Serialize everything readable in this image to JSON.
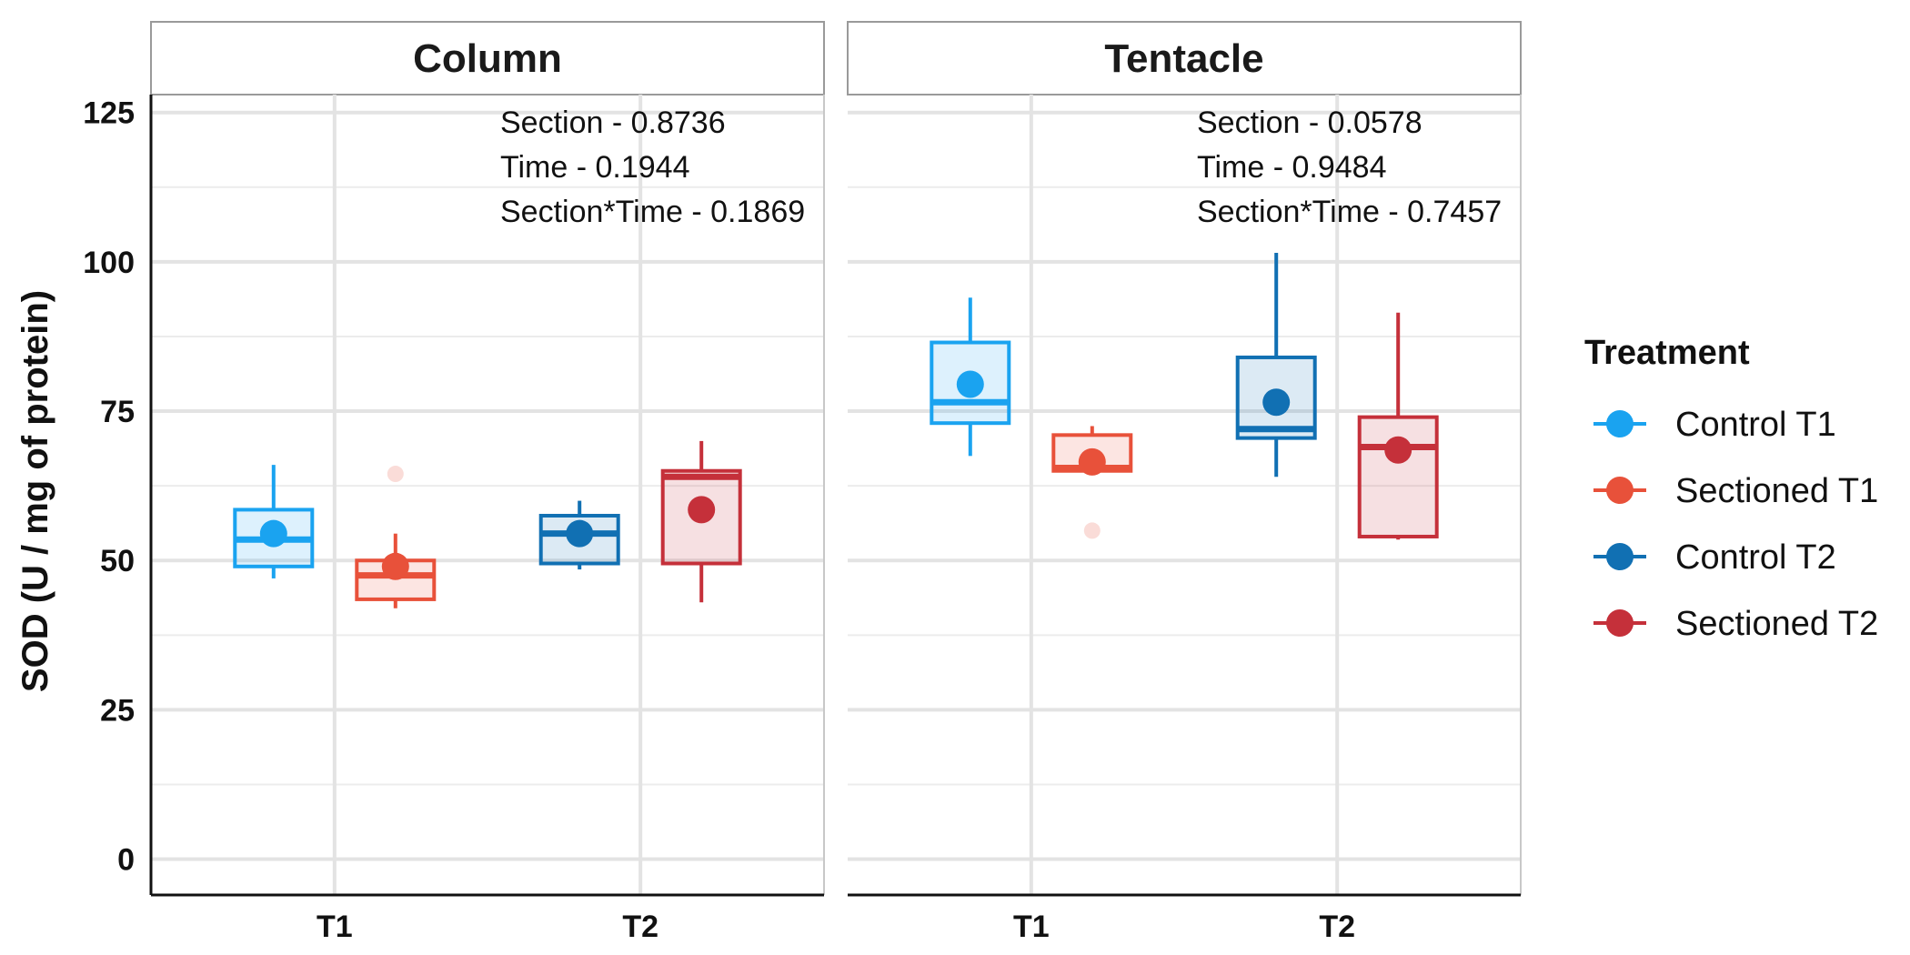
{
  "chart_data": {
    "type": "box",
    "ylabel": "SOD (U / mg  of protein)",
    "xlabel": "",
    "ylim": [
      -6,
      128
    ],
    "yticks": [
      0,
      25,
      50,
      75,
      100,
      125
    ],
    "categories": [
      "T1",
      "T2"
    ],
    "grid": true,
    "legend": {
      "title": "Treatment",
      "placement": "right",
      "entries": [
        {
          "label": "Control T1",
          "color": "#1aa3f0"
        },
        {
          "label": "Sectioned T1",
          "color": "#e8513a"
        },
        {
          "label": "Control T2",
          "color": "#1170b3"
        },
        {
          "label": "Sectioned T2",
          "color": "#c5303a"
        }
      ]
    },
    "panels": [
      {
        "title": "Column",
        "annotations": [
          "Section - 0.8736",
          "Time - 0.1944",
          "Section*Time - 0.1869"
        ],
        "boxes": [
          {
            "series": "Control T1",
            "category": "T1",
            "offset": -1,
            "color": "#1aa3f0",
            "whisker_low": 47,
            "q1": 49,
            "median": 53.5,
            "q3": 58.5,
            "whisker_high": 66,
            "mean": 54.5,
            "outliers": []
          },
          {
            "series": "Sectioned T1",
            "category": "T1",
            "offset": 1,
            "color": "#e8513a",
            "whisker_low": 42,
            "q1": 43.5,
            "median": 47.5,
            "q3": 50,
            "whisker_high": 54.5,
            "mean": 49,
            "outliers": [
              64.5
            ]
          },
          {
            "series": "Control T2",
            "category": "T2",
            "offset": -1,
            "color": "#1170b3",
            "whisker_low": 48.5,
            "q1": 49.5,
            "median": 54.5,
            "q3": 57.5,
            "whisker_high": 60,
            "mean": 54.5,
            "outliers": []
          },
          {
            "series": "Sectioned T2",
            "category": "T2",
            "offset": 1,
            "color": "#c5303a",
            "whisker_low": 43,
            "q1": 49.5,
            "median": 64,
            "q3": 65,
            "whisker_high": 70,
            "mean": 58.5,
            "outliers": []
          }
        ]
      },
      {
        "title": "Tentacle",
        "annotations": [
          "Section - 0.0578",
          "Time - 0.9484",
          "Section*Time - 0.7457"
        ],
        "boxes": [
          {
            "series": "Control T1",
            "category": "T1",
            "offset": -1,
            "color": "#1aa3f0",
            "whisker_low": 67.5,
            "q1": 73,
            "median": 76.5,
            "q3": 86.5,
            "whisker_high": 94,
            "mean": 79.5,
            "outliers": []
          },
          {
            "series": "Sectioned T1",
            "category": "T1",
            "offset": 1,
            "color": "#e8513a",
            "whisker_low": 64.5,
            "q1": 65,
            "median": 65.5,
            "q3": 71,
            "whisker_high": 72.5,
            "mean": 66.5,
            "outliers": [
              55
            ]
          },
          {
            "series": "Control T2",
            "category": "T2",
            "offset": -1,
            "color": "#1170b3",
            "whisker_low": 64,
            "q1": 70.5,
            "median": 72,
            "q3": 84,
            "whisker_high": 101.5,
            "mean": 76.5,
            "outliers": []
          },
          {
            "series": "Sectioned T2",
            "category": "T2",
            "offset": 1,
            "color": "#c5303a",
            "whisker_low": 53.5,
            "q1": 54,
            "median": 69,
            "q3": 74,
            "whisker_high": 91.5,
            "mean": 68.5,
            "outliers": []
          }
        ]
      }
    ]
  }
}
